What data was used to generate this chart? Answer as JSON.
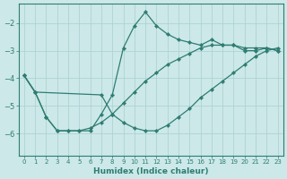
{
  "xlabel": "Humidex (Indice chaleur)",
  "ylabel": "",
  "background_color": "#cce8e8",
  "grid_color": "#aacfcf",
  "line_color": "#2e7d72",
  "xlim": [
    -0.5,
    23.5
  ],
  "ylim": [
    -6.8,
    -1.3
  ],
  "yticks": [
    -6,
    -5,
    -4,
    -3,
    -2
  ],
  "xticks": [
    0,
    1,
    2,
    3,
    4,
    5,
    6,
    7,
    8,
    9,
    10,
    11,
    12,
    13,
    14,
    15,
    16,
    17,
    18,
    19,
    20,
    21,
    22,
    23
  ],
  "series": [
    {
      "x": [
        0,
        1,
        2,
        3,
        4,
        5,
        6,
        7,
        8,
        9,
        10,
        11,
        12,
        13,
        14,
        15,
        16,
        17,
        18,
        19,
        20,
        21,
        22,
        23
      ],
      "y": [
        -3.9,
        -4.5,
        -5.4,
        -5.9,
        -5.9,
        -5.9,
        -5.9,
        -5.3,
        -4.6,
        -2.9,
        -2.1,
        -1.6,
        -2.1,
        -2.4,
        -2.6,
        -2.7,
        -2.8,
        -2.6,
        -2.8,
        -2.8,
        -3.0,
        -3.0,
        -2.9,
        -3.0
      ]
    },
    {
      "x": [
        0,
        1,
        7,
        8,
        9,
        10,
        11,
        12,
        13,
        14,
        15,
        16,
        17,
        18,
        19,
        20,
        21,
        22,
        23
      ],
      "y": [
        -3.9,
        -4.5,
        -4.6,
        -5.3,
        -5.6,
        -5.8,
        -5.9,
        -5.9,
        -5.7,
        -5.4,
        -5.1,
        -4.7,
        -4.4,
        -4.1,
        -3.8,
        -3.5,
        -3.2,
        -3.0,
        -2.9
      ]
    },
    {
      "x": [
        0,
        1,
        2,
        3,
        4,
        5,
        6,
        7,
        8,
        9,
        10,
        11,
        12,
        13,
        14,
        15,
        16,
        17,
        18,
        19,
        20,
        21,
        22,
        23
      ],
      "y": [
        -3.9,
        -4.5,
        -5.4,
        -5.9,
        -5.9,
        -5.9,
        -5.8,
        -5.6,
        -5.3,
        -4.9,
        -4.5,
        -4.1,
        -3.8,
        -3.5,
        -3.3,
        -3.1,
        -2.9,
        -2.8,
        -2.8,
        -2.8,
        -2.9,
        -2.9,
        -2.9,
        -3.0
      ]
    }
  ]
}
